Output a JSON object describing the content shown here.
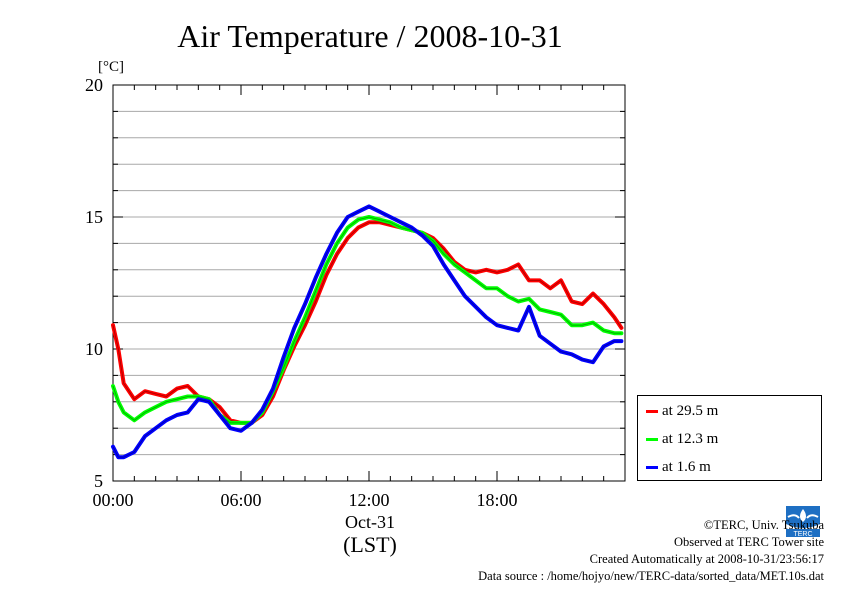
{
  "chart_data": {
    "type": "line",
    "title": "Air Temperature / 2008-10-31",
    "ylabel": "[°C]",
    "xlabel": "(LST)",
    "x_date_label": "Oct-31",
    "ylim": [
      5,
      20
    ],
    "xlim": [
      "00:00",
      "24:00"
    ],
    "yticks": [
      "5",
      "10",
      "15",
      "20"
    ],
    "xticks": [
      "00:00",
      "06:00",
      "12:00",
      "18:00"
    ],
    "grid": true,
    "legend_position": "lower-right-outside",
    "x": [
      "00:00",
      "00:15",
      "00:30",
      "01:00",
      "01:30",
      "02:00",
      "02:30",
      "03:00",
      "03:30",
      "04:00",
      "04:30",
      "05:00",
      "05:30",
      "06:00",
      "06:30",
      "07:00",
      "07:30",
      "08:00",
      "08:30",
      "09:00",
      "09:30",
      "10:00",
      "10:30",
      "11:00",
      "11:30",
      "12:00",
      "12:30",
      "13:00",
      "13:30",
      "14:00",
      "14:30",
      "15:00",
      "15:30",
      "16:00",
      "16:30",
      "17:00",
      "17:30",
      "18:00",
      "18:30",
      "19:00",
      "19:30",
      "20:00",
      "20:30",
      "21:00",
      "21:30",
      "22:00",
      "22:30",
      "23:00",
      "23:30",
      "23:50"
    ],
    "series": [
      {
        "name": "at 29.5 m",
        "color": "#ff0000",
        "values": [
          10.9,
          10.0,
          8.7,
          8.1,
          8.4,
          8.3,
          8.2,
          8.5,
          8.6,
          8.2,
          8.1,
          7.8,
          7.3,
          7.2,
          7.2,
          7.5,
          8.2,
          9.2,
          10.1,
          10.9,
          11.8,
          12.8,
          13.6,
          14.2,
          14.6,
          14.8,
          14.8,
          14.7,
          14.6,
          14.5,
          14.4,
          14.2,
          13.8,
          13.3,
          13.0,
          12.9,
          13.0,
          12.9,
          13.0,
          13.2,
          12.6,
          12.6,
          12.3,
          12.6,
          11.8,
          11.7,
          12.1,
          11.7,
          11.2,
          10.8
        ]
      },
      {
        "name": "at 12.3 m",
        "color": "#00ff00",
        "values": [
          8.6,
          8.0,
          7.6,
          7.3,
          7.6,
          7.8,
          8.0,
          8.1,
          8.2,
          8.2,
          8.1,
          7.5,
          7.2,
          7.2,
          7.2,
          7.6,
          8.4,
          9.3,
          10.3,
          11.2,
          12.2,
          13.2,
          14.0,
          14.6,
          14.9,
          15.0,
          14.9,
          14.8,
          14.6,
          14.5,
          14.4,
          14.1,
          13.6,
          13.2,
          12.9,
          12.6,
          12.3,
          12.3,
          12.0,
          11.8,
          11.9,
          11.5,
          11.4,
          11.3,
          10.9,
          10.9,
          11.0,
          10.7,
          10.6,
          10.6
        ]
      },
      {
        "name": "at 1.6 m",
        "color": "#0000ff",
        "values": [
          6.3,
          5.9,
          5.9,
          6.1,
          6.7,
          7.0,
          7.3,
          7.5,
          7.6,
          8.1,
          8.0,
          7.5,
          7.0,
          6.9,
          7.2,
          7.7,
          8.5,
          9.7,
          10.8,
          11.7,
          12.7,
          13.6,
          14.4,
          15.0,
          15.2,
          15.4,
          15.2,
          15.0,
          14.8,
          14.6,
          14.3,
          13.9,
          13.2,
          12.6,
          12.0,
          11.6,
          11.2,
          10.9,
          10.8,
          10.7,
          11.6,
          10.5,
          10.2,
          9.9,
          9.8,
          9.6,
          9.5,
          10.1,
          10.3,
          10.3
        ]
      }
    ]
  },
  "credits": {
    "copyright": "©TERC, Univ. Tsukuba",
    "observed": "Observed at TERC Tower site",
    "created": "Created Automatically at 2008-10-31/23:56:17",
    "source": "Data source : /home/hojyo/new/TERC-data/sorted_data/MET.10s.dat"
  },
  "logo": {
    "text": "TERC",
    "color": "#1e6fc3"
  }
}
